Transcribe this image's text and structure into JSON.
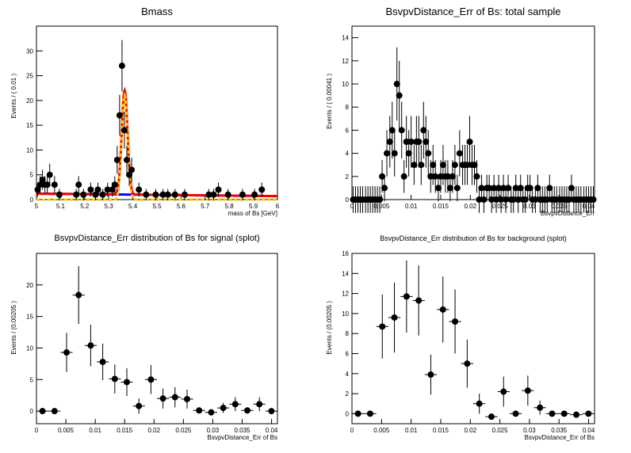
{
  "chart_data": [
    {
      "type": "scatter",
      "title": "Bmass",
      "xlabel": "mass of Bs [GeV]",
      "ylabel": "Events / ( 0.01 )",
      "xlim": [
        5,
        6
      ],
      "ylim": [
        0,
        35
      ],
      "xticks": [
        5,
        5.1,
        5.2,
        5.3,
        5.4,
        5.5,
        5.6,
        5.7,
        5.8,
        5.9,
        6
      ],
      "xtick_labels": [
        "5",
        "5.1",
        "5.2",
        "5.3",
        "5.4",
        "5.5",
        "5.6",
        "5.7",
        "5.8",
        "5.9",
        "6"
      ],
      "yticks": [
        0,
        5,
        10,
        15,
        20,
        25,
        30
      ],
      "ytick_labels": [
        "0",
        "5",
        "10",
        "15",
        "20",
        "25",
        "30"
      ],
      "bin_width": 0.01,
      "points": {
        "x": [
          5.005,
          5.015,
          5.025,
          5.035,
          5.045,
          5.055,
          5.075,
          5.095,
          5.165,
          5.175,
          5.195,
          5.225,
          5.245,
          5.255,
          5.275,
          5.295,
          5.315,
          5.325,
          5.335,
          5.345,
          5.355,
          5.365,
          5.375,
          5.385,
          5.395,
          5.425,
          5.455,
          5.495,
          5.525,
          5.545,
          5.575,
          5.615,
          5.715,
          5.735,
          5.755,
          5.795,
          5.855,
          5.905,
          5.935
        ],
        "y": [
          2,
          3,
          4,
          3,
          3,
          5,
          3,
          1,
          1,
          3,
          1,
          2,
          1,
          2,
          1,
          2,
          2,
          3,
          8,
          17,
          27,
          14,
          8,
          5,
          6,
          2,
          1,
          1,
          1,
          1,
          1,
          1,
          1,
          1,
          2,
          1,
          1,
          1,
          2
        ]
      },
      "curves": [
        {
          "name": "",
          "color": "#0000ff",
          "shape": "background",
          "values_at": [
            5.0,
            5.1,
            5.2,
            5.3,
            5.4,
            5.5,
            5.6,
            5.7,
            5.8,
            5.9,
            6.0
          ],
          "values": [
            1.2,
            1.15,
            1.05,
            1.0,
            0.95,
            0.9,
            0.85,
            0.8,
            0.75,
            0.72,
            0.7
          ]
        },
        {
          "name": "",
          "color": "#ff0000",
          "shape": "total",
          "peak_x": 5.366,
          "peak_y": 22,
          "sigma": 0.012
        },
        {
          "name": "",
          "color": "#ffcc00",
          "shape": "signal",
          "peak_x": 5.366,
          "peak_y": 21,
          "sigma": 0.012
        }
      ]
    },
    {
      "type": "scatter",
      "title": "BsvpvDistance_Err of Bs: total sample",
      "xlabel": "BsvpvDistance_Err",
      "ylabel": "Events / ( 0.00041 )",
      "xlim": [
        0,
        0.041
      ],
      "ylim": [
        0,
        15
      ],
      "xticks": [
        0,
        0.005,
        0.01,
        0.015,
        0.02,
        0.025,
        0.03,
        0.035,
        0.04
      ],
      "xtick_labels": [
        "0",
        "0.005",
        "0.01",
        "0.015",
        "0.02",
        "0.025",
        "0.03",
        "0.035",
        "0.04"
      ],
      "yticks": [
        0,
        2,
        4,
        6,
        8,
        10,
        12,
        14
      ],
      "ytick_labels": [
        "0",
        "2",
        "4",
        "6",
        "8",
        "10",
        "12",
        "14"
      ],
      "bin_width": 0.00041,
      "points": {
        "x": [
          0.0002,
          0.0006,
          0.001,
          0.0014,
          0.0018,
          0.0023,
          0.0027,
          0.0031,
          0.0035,
          0.0039,
          0.0043,
          0.0047,
          0.0051,
          0.0055,
          0.0059,
          0.0064,
          0.0068,
          0.0072,
          0.0076,
          0.008,
          0.0084,
          0.0088,
          0.0092,
          0.0096,
          0.01,
          0.0105,
          0.0109,
          0.0113,
          0.0117,
          0.0121,
          0.0125,
          0.0129,
          0.0133,
          0.0137,
          0.0141,
          0.0146,
          0.015,
          0.0154,
          0.0158,
          0.0162,
          0.0166,
          0.017,
          0.0174,
          0.0178,
          0.0182,
          0.0187,
          0.0191,
          0.0195,
          0.0199,
          0.0203,
          0.0207,
          0.0211,
          0.0215,
          0.0219,
          0.0223,
          0.0228,
          0.0232,
          0.0236,
          0.024,
          0.0244,
          0.0248,
          0.0252,
          0.0256,
          0.026,
          0.0264,
          0.0269,
          0.0273,
          0.0277,
          0.0281,
          0.0285,
          0.0289,
          0.0293,
          0.0297,
          0.0301,
          0.0305,
          0.031,
          0.0314,
          0.0318,
          0.0322,
          0.0326,
          0.033,
          0.0334,
          0.0338,
          0.0342,
          0.0346,
          0.0351,
          0.0355,
          0.0359,
          0.0363,
          0.0367,
          0.0371,
          0.0375,
          0.0379,
          0.0383,
          0.0387,
          0.0392,
          0.0396,
          0.04,
          0.0404,
          0.0408
        ],
        "y": [
          0,
          0,
          0,
          0,
          0,
          0,
          0,
          0,
          0,
          0,
          0,
          0,
          2,
          1,
          4,
          5,
          6,
          4,
          10,
          9,
          6,
          2,
          5,
          4,
          5,
          3,
          5,
          5,
          3,
          6,
          5,
          4,
          2,
          3,
          2,
          1,
          2,
          3,
          2,
          2,
          1,
          2,
          3,
          1,
          4,
          3,
          3,
          3,
          5,
          3,
          3,
          2,
          0,
          1,
          0,
          1,
          1,
          0,
          1,
          0,
          1,
          0,
          1,
          0,
          1,
          0,
          0,
          1,
          0,
          1,
          0,
          0,
          1,
          1,
          0,
          0,
          1,
          0,
          0,
          0,
          0,
          1,
          0,
          0,
          0,
          0,
          0,
          0,
          0,
          0,
          1,
          0,
          0,
          0,
          0,
          0,
          0,
          0,
          0,
          0
        ]
      }
    },
    {
      "type": "scatter",
      "title": "BsvpvDistance_Err distribution of Bs for signal (splot)",
      "xlabel": "BsvpvDistance_Err of Bs",
      "ylabel": "Events / (0.00205 )",
      "xlim": [
        0,
        0.041
      ],
      "ylim": [
        -2,
        25
      ],
      "xticks": [
        0,
        0.005,
        0.01,
        0.015,
        0.02,
        0.025,
        0.03,
        0.035,
        0.04
      ],
      "xtick_labels": [
        "0",
        "0.005",
        "0.01",
        "0.015",
        "0.02",
        "0.025",
        "0.03",
        "0.035",
        "0.04"
      ],
      "yticks": [
        0,
        5,
        10,
        15,
        20
      ],
      "ytick_labels": [
        "0",
        "5",
        "10",
        "15",
        "20"
      ],
      "bin_width": 0.00205,
      "points": {
        "x": [
          0.001025,
          0.003075,
          0.005125,
          0.007175,
          0.009225,
          0.011275,
          0.013325,
          0.015375,
          0.017425,
          0.019475,
          0.021525,
          0.023575,
          0.025625,
          0.027675,
          0.029725,
          0.031775,
          0.033825,
          0.035875,
          0.037925,
          0.039975
        ],
        "y": [
          0,
          0,
          9.3,
          18.4,
          10.4,
          7.8,
          5.1,
          4.6,
          0.8,
          5.0,
          2.0,
          2.2,
          1.9,
          0.1,
          -0.2,
          0.5,
          1.1,
          0.1,
          1.1,
          0.0
        ],
        "err": [
          0.5,
          0.5,
          3.1,
          4.6,
          3.3,
          2.9,
          2.3,
          2.2,
          1.2,
          2.3,
          1.6,
          1.6,
          1.5,
          0.4,
          0.4,
          0.8,
          1.1,
          0.4,
          1.1,
          0.4
        ]
      }
    },
    {
      "type": "scatter",
      "title": "BsvpvDistance_Err distribution of Bs for background (splot)",
      "xlabel": "BsvpvDistance_Err of Bs",
      "ylabel": "Events / (0.00205 )",
      "xlim": [
        0,
        0.041
      ],
      "ylim": [
        -1,
        16
      ],
      "xticks": [
        0,
        0.005,
        0.01,
        0.015,
        0.02,
        0.025,
        0.03,
        0.035,
        0.04
      ],
      "xtick_labels": [
        "0",
        "0.005",
        "0.01",
        "0.015",
        "0.02",
        "0.025",
        "0.03",
        "0.035",
        "0.04"
      ],
      "yticks": [
        0,
        2,
        4,
        6,
        8,
        10,
        12,
        14,
        16
      ],
      "ytick_labels": [
        "0",
        "2",
        "4",
        "6",
        "8",
        "10",
        "12",
        "14",
        "16"
      ],
      "bin_width": 0.00205,
      "points": {
        "x": [
          0.001025,
          0.003075,
          0.005125,
          0.007175,
          0.009225,
          0.011275,
          0.013325,
          0.015375,
          0.017425,
          0.019475,
          0.021525,
          0.023575,
          0.025625,
          0.027675,
          0.029725,
          0.031775,
          0.033825,
          0.035875,
          0.037925,
          0.039975
        ],
        "y": [
          0,
          0,
          8.7,
          9.6,
          11.7,
          11.3,
          3.9,
          10.4,
          9.2,
          5.0,
          1.0,
          -0.3,
          2.2,
          0.0,
          2.3,
          0.6,
          0.0,
          0.0,
          -0.1,
          0.0
        ],
        "err": [
          0.3,
          0.3,
          3.2,
          3.5,
          3.6,
          3.5,
          2.0,
          3.3,
          3.2,
          2.4,
          1.0,
          0.3,
          1.5,
          0.3,
          1.5,
          0.7,
          0.3,
          0.3,
          0.3,
          0.3
        ]
      }
    }
  ]
}
